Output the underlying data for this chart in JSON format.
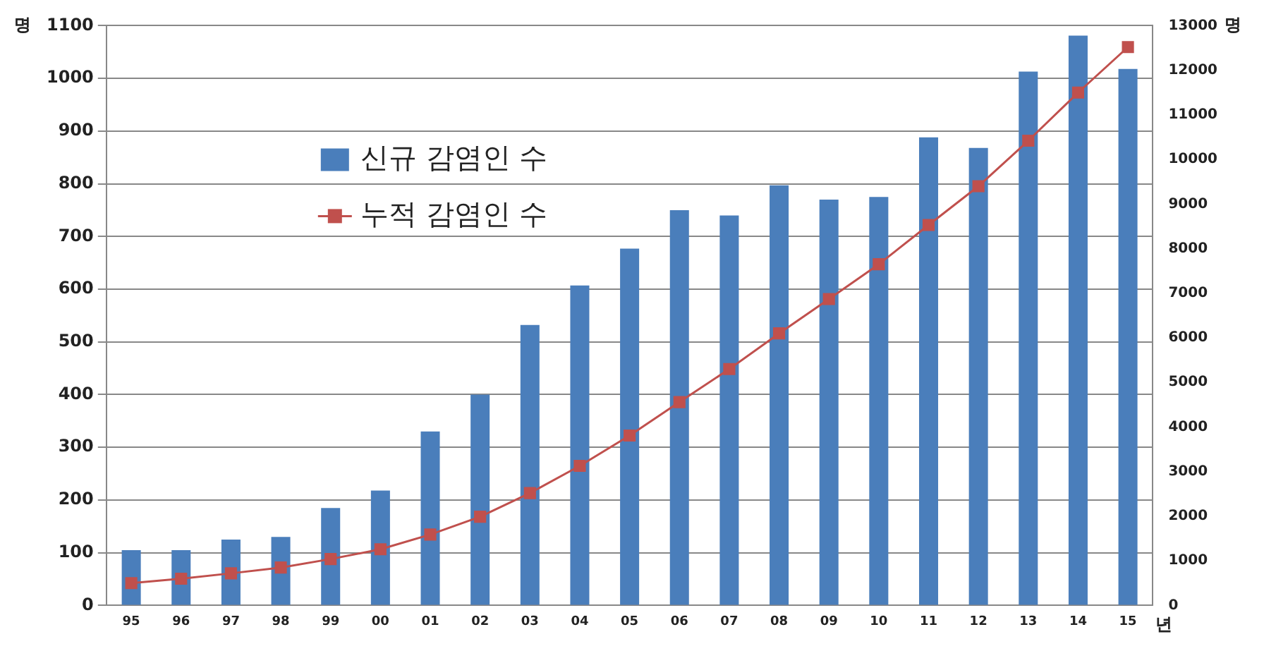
{
  "chart_data": {
    "type": "bar",
    "ylabel": "명",
    "y2label": "명",
    "xlabel": "년",
    "categories": [
      "95",
      "96",
      "97",
      "98",
      "99",
      "00",
      "01",
      "02",
      "03",
      "04",
      "05",
      "06",
      "07",
      "08",
      "09",
      "10",
      "11",
      "12",
      "13",
      "14",
      "15"
    ],
    "series": [
      {
        "name": "신규 감염인 수",
        "color": "#4a7ebb",
        "values": [
          105,
          105,
          125,
          130,
          185,
          218,
          330,
          400,
          532,
          607,
          677,
          750,
          740,
          797,
          770,
          775,
          888,
          868,
          1013,
          1081,
          1018
        ]
      },
      {
        "name": "누적 감염인 수",
        "type": "line",
        "axis": "y2",
        "color": "#c0504d",
        "marker": "square",
        "values": [
          500,
          600,
          720,
          850,
          1040,
          1260,
          1590,
          1990,
          2520,
          3130,
          3810,
          4560,
          5300,
          6100,
          6870,
          7650,
          8530,
          9400,
          10420,
          11500,
          12520
        ]
      }
    ],
    "ylim": [
      0,
      1100
    ],
    "yticks": [
      0,
      100,
      200,
      300,
      400,
      500,
      600,
      700,
      800,
      900,
      1000,
      1100
    ],
    "y2lim": [
      0,
      13000
    ],
    "y2ticks": [
      0,
      1000,
      2000,
      3000,
      4000,
      5000,
      6000,
      7000,
      8000,
      9000,
      10000,
      11000,
      12000,
      13000
    ],
    "grid": "y",
    "legend": "top left"
  }
}
